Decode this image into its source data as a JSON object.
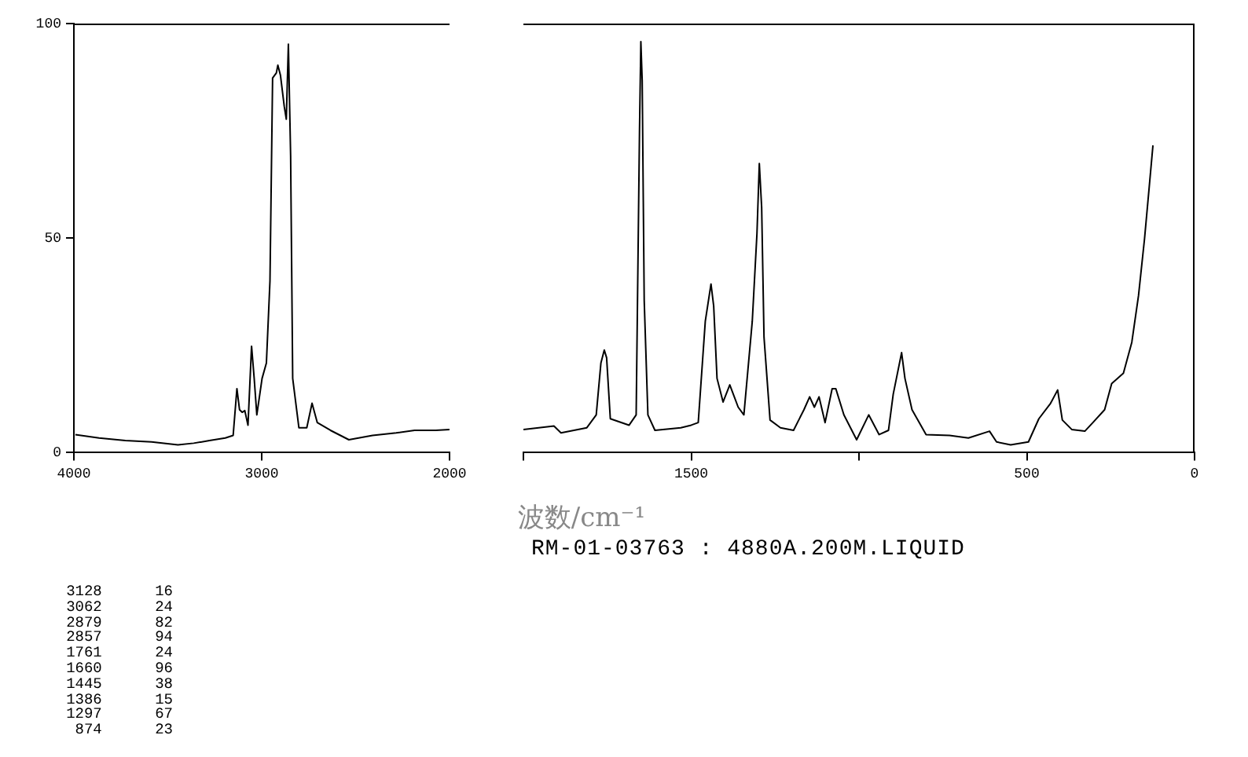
{
  "chart_data": [
    {
      "type": "line",
      "x": [
        3992,
        3866,
        3726,
        3586,
        3446,
        3362,
        3278,
        3194,
        3152,
        3132,
        3118,
        3104,
        3090,
        3073,
        3054,
        3040,
        3026,
        2998,
        2975,
        2956,
        2942,
        2922,
        2914,
        2900,
        2880,
        2869,
        2858,
        2846,
        2835,
        2802,
        2760,
        2732,
        2704,
        2634,
        2536,
        2410,
        2284,
        2186,
        2074,
        2000
      ],
      "series": [
        {
          "color": "#000000",
          "values": [
            4.2,
            3.4,
            2.8,
            2.5,
            1.8,
            2.2,
            2.8,
            3.4,
            4.0,
            14.9,
            10,
            9.4,
            9.8,
            6.4,
            24.8,
            17.3,
            8.8,
            17.3,
            20.9,
            40,
            87.3,
            88.5,
            90.3,
            87.9,
            80.7,
            77.7,
            95.2,
            69.2,
            17.3,
            5.8,
            5.8,
            11.5,
            7.0,
            5.2,
            3.0,
            4.0,
            4.6,
            5.2,
            5.2,
            5.4
          ]
        }
      ],
      "xlim": [
        4000,
        2000
      ],
      "xticks": [
        4000,
        3000,
        2000
      ],
      "ylim": [
        0,
        100
      ],
      "yticks": [
        0,
        50,
        100
      ],
      "grid": false,
      "legend": false,
      "marker": "none",
      "line_style": "solid",
      "annotations": [
        "3128 16",
        "3062 24",
        "2879 82",
        "2857 94",
        "1761 24",
        "1660 96",
        "1445 38",
        "1386 15",
        "1297 67",
        "874 23"
      ]
    },
    {
      "type": "line",
      "xlabel": "波数/cm⁻¹",
      "x": [
        2000,
        1909,
        1888,
        1811,
        1783,
        1769,
        1759,
        1752,
        1741,
        1685,
        1664,
        1654,
        1650,
        1646,
        1640,
        1629,
        1608,
        1531,
        1500,
        1479,
        1458,
        1441,
        1433,
        1423,
        1405,
        1385,
        1360,
        1343,
        1318,
        1304,
        1297,
        1290,
        1283,
        1265,
        1234,
        1195,
        1164,
        1147,
        1133,
        1119,
        1101,
        1080,
        1069,
        1045,
        1007,
        971,
        940,
        912,
        898,
        873,
        863,
        842,
        800,
        730,
        674,
        611,
        590,
        548,
        495,
        464,
        429,
        408,
        394,
        366,
        327,
        303,
        268,
        247,
        212,
        187,
        167,
        149,
        135,
        124
      ],
      "series": [
        {
          "color": "#000000",
          "values": [
            5.4,
            6.2,
            4.6,
            5.8,
            8.8,
            20.9,
            23.9,
            22.1,
            7.9,
            6.4,
            8.8,
            75.2,
            95.8,
            86.7,
            35.4,
            8.8,
            5.2,
            5.8,
            6.4,
            7.0,
            30.6,
            39.3,
            34.2,
            17.3,
            11.8,
            15.8,
            10.6,
            8.8,
            30.6,
            51.1,
            67.4,
            57.1,
            26.9,
            7.6,
            5.8,
            5.2,
            10.0,
            13.0,
            10.6,
            13.0,
            7.0,
            14.9,
            14.9,
            8.8,
            3.0,
            8.8,
            4.2,
            5.2,
            13.6,
            23.3,
            17.3,
            10.0,
            4.2,
            4.0,
            3.4,
            5.0,
            2.5,
            1.8,
            2.5,
            7.9,
            11.5,
            14.6,
            7.6,
            5.4,
            5.0,
            7.0,
            10.0,
            16.1,
            18.5,
            25.7,
            36.6,
            49.9,
            62.0,
            71.6
          ]
        }
      ],
      "xlim": [
        2000,
        0
      ],
      "xticks": [
        {
          "value": 2000,
          "label": null
        },
        1500,
        {
          "value": 1000,
          "label": null
        },
        500,
        0
      ],
      "ylim": [
        0,
        100
      ],
      "tick_labels": "x",
      "grid": false,
      "legend": false,
      "marker": "none",
      "line_style": "solid",
      "annotations": [
        "RM-01-03763 : 4880A.200M.LIQUID"
      ]
    }
  ]
}
